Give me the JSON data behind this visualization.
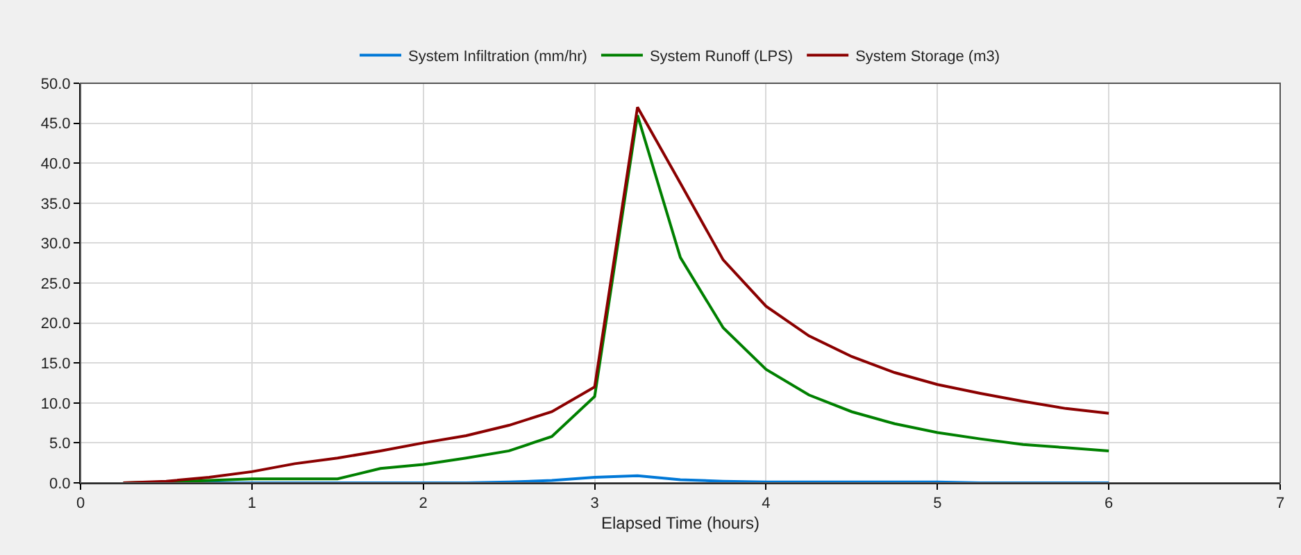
{
  "chart_data": {
    "type": "line",
    "xlabel": "Elapsed Time (hours)",
    "x": [
      0.25,
      0.5,
      0.75,
      1,
      1.25,
      1.5,
      1.75,
      2,
      2.25,
      2.5,
      2.75,
      3,
      3.25,
      3.5,
      3.75,
      4,
      4.25,
      4.5,
      4.75,
      5,
      5.25,
      5.5,
      5.75,
      6
    ],
    "series": [
      {
        "name": "System Infiltration (mm/hr)",
        "color": "#0078d7",
        "values": [
          0,
          0,
          0,
          0,
          0,
          0,
          0,
          0,
          0,
          0.1,
          0.3,
          0.7,
          0.9,
          0.4,
          0.2,
          0.1,
          0.1,
          0.1,
          0.1,
          0.1,
          0,
          0,
          0,
          0
        ]
      },
      {
        "name": "System Runoff (LPS)",
        "color": "#008000",
        "values": [
          0,
          0.1,
          0.3,
          0.5,
          0.5,
          0.5,
          1.8,
          2.3,
          3.1,
          4.0,
          5.8,
          10.8,
          46.0,
          28.2,
          19.4,
          14.2,
          11.0,
          8.9,
          7.4,
          6.3,
          5.5,
          4.8,
          4.4,
          4.0
        ]
      },
      {
        "name": "System Storage (m3)",
        "color": "#8b0000",
        "values": [
          0,
          0.2,
          0.7,
          1.4,
          2.4,
          3.1,
          4.0,
          5.0,
          5.9,
          7.2,
          8.9,
          12.0,
          47.0,
          37.5,
          27.9,
          22.1,
          18.4,
          15.8,
          13.8,
          12.3,
          11.2,
          10.2,
          9.3,
          8.7
        ]
      }
    ],
    "xlim": [
      0,
      7
    ],
    "xticks": [
      0,
      1,
      2,
      3,
      4,
      5,
      6,
      7
    ],
    "ylim": [
      0,
      50
    ],
    "yticks": [
      {
        "value": 0,
        "label": "0.0"
      },
      {
        "value": 5,
        "label": "5.0"
      },
      {
        "value": 10,
        "label": "10.0"
      },
      {
        "value": 15,
        "label": "15.0"
      },
      {
        "value": 20,
        "label": "20.0"
      },
      {
        "value": 25,
        "label": "25.0"
      },
      {
        "value": 30,
        "label": "30.0"
      },
      {
        "value": 35,
        "label": "35.0"
      },
      {
        "value": 40,
        "label": "40.0"
      },
      {
        "value": 45,
        "label": "45.0"
      },
      {
        "value": 50,
        "label": "50.0"
      }
    ],
    "grid": true,
    "legend": "top",
    "marker": "none",
    "line_style": "solid"
  }
}
